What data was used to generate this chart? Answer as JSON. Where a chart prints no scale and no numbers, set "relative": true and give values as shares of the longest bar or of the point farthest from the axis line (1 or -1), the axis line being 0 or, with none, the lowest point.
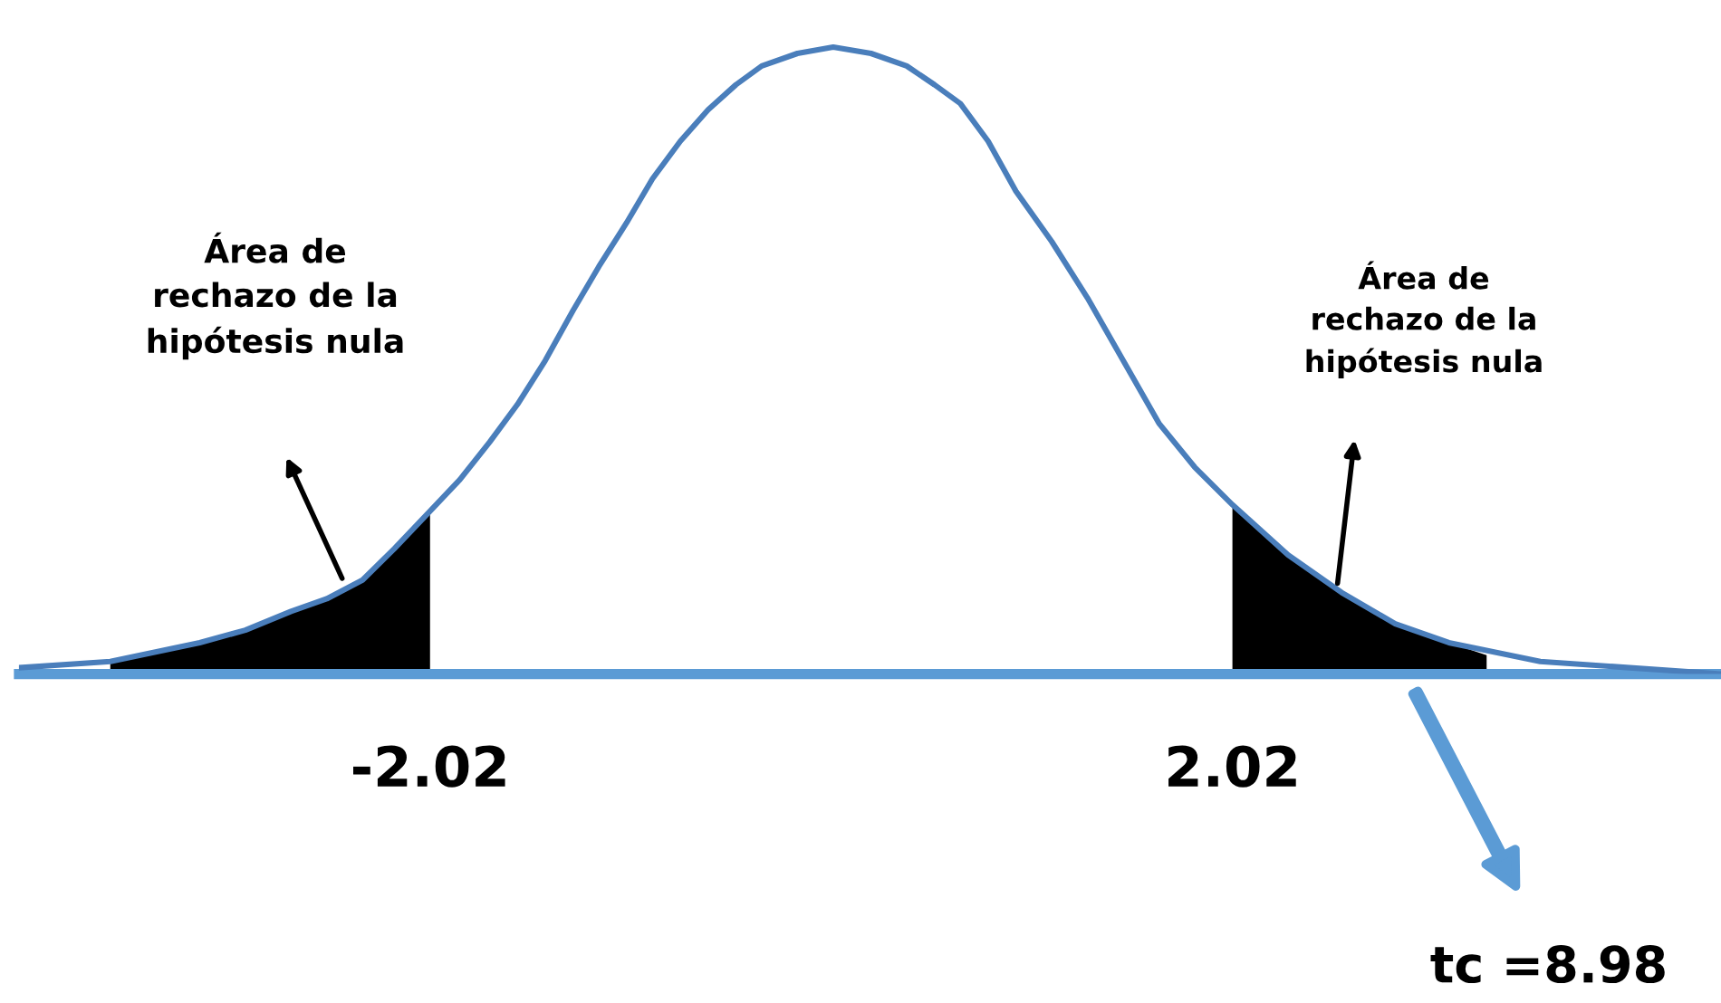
{
  "chart_data": {
    "type": "line",
    "relative": true,
    "xlim": [
      -4.09,
      4.48
    ],
    "xticks": [
      -2.02,
      2.02
    ],
    "series": [
      {
        "color": "#4a7ebb",
        "x": [
          -4.09,
          -3.63,
          -3.18,
          -2.95,
          -2.72,
          -2.54,
          -2.36,
          -2.2,
          -2.02,
          -1.87,
          -1.72,
          -1.58,
          -1.44,
          -1.3,
          -1.17,
          -1.03,
          -0.9,
          -0.76,
          -0.62,
          -0.48,
          -0.35,
          -0.17,
          0.01,
          0.2,
          0.38,
          0.52,
          0.65,
          0.79,
          0.93,
          1.11,
          1.29,
          1.47,
          1.65,
          1.83,
          2.02,
          2.3,
          2.57,
          2.84,
          3.11,
          3.57,
          4.02,
          4.48
        ],
        "values": [
          0.01,
          0.02,
          0.05,
          0.07,
          0.1,
          0.12,
          0.15,
          0.2,
          0.26,
          0.31,
          0.37,
          0.43,
          0.5,
          0.58,
          0.65,
          0.72,
          0.79,
          0.85,
          0.9,
          0.94,
          0.97,
          0.99,
          1.0,
          0.99,
          0.97,
          0.94,
          0.91,
          0.85,
          0.77,
          0.69,
          0.6,
          0.5,
          0.4,
          0.33,
          0.27,
          0.19,
          0.13,
          0.08,
          0.05,
          0.02,
          0.01,
          0.0
        ]
      },
      {
        "type": "area",
        "color": "#000000",
        "x": [
          -3.63,
          -3.18,
          -2.95,
          -2.72,
          -2.54,
          -2.36,
          -2.2,
          -2.02
        ],
        "values": [
          0.02,
          0.05,
          0.07,
          0.1,
          0.12,
          0.15,
          0.2,
          0.26
        ]
      },
      {
        "type": "area",
        "color": "#000000",
        "x": [
          2.02,
          2.3,
          2.57,
          2.84,
          3.11,
          3.3
        ],
        "values": [
          0.27,
          0.19,
          0.13,
          0.08,
          0.05,
          0.03
        ]
      }
    ],
    "annotations": [
      "Área de\nrechazo de la\nhipótesis nula",
      "Área de\nrechazo de la\nhipótesis nula",
      "tc =8.98"
    ]
  }
}
